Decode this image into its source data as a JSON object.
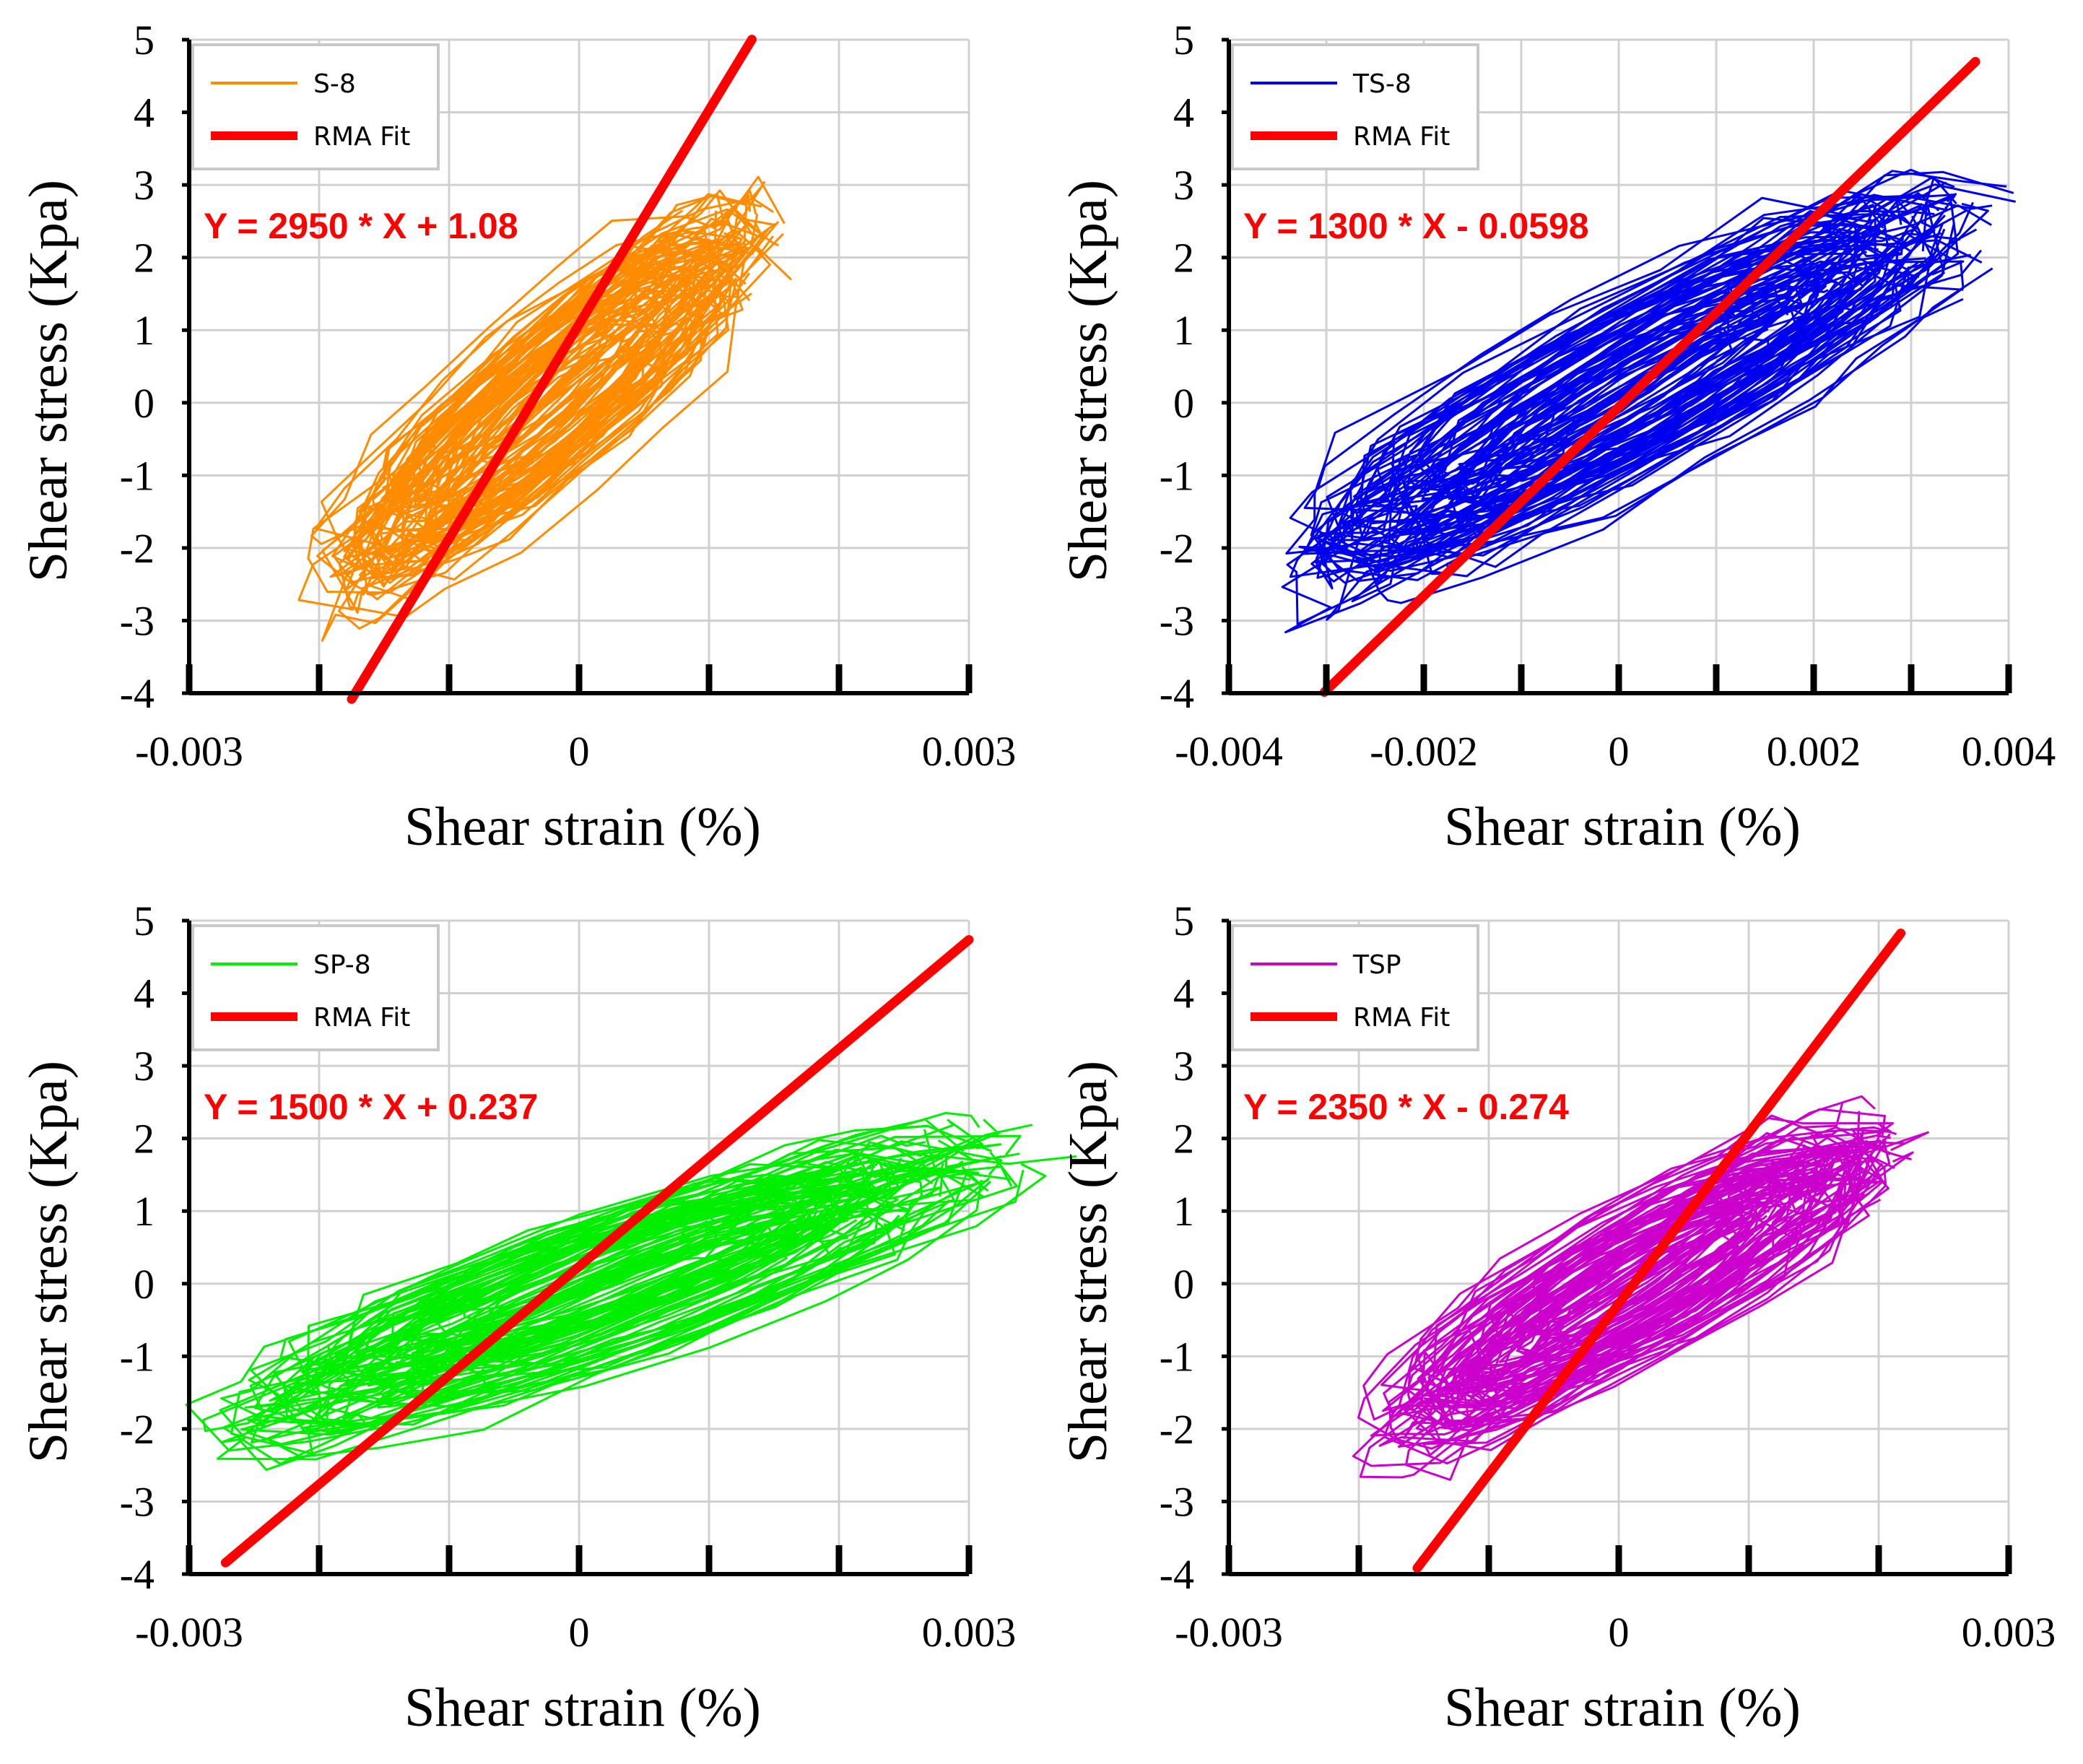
{
  "colors": {
    "fit": "#ff0000",
    "grid": "#d0d0d0",
    "axis": "#000000"
  },
  "chart_data": [
    {
      "type": "line",
      "series_name": "S-8",
      "color": "#ff8c00",
      "fit_label": "RMA Fit",
      "equation": "Y = 2950 * X + 1.08",
      "slope": 2950,
      "intercept": 1.08,
      "fit_x": [
        -0.00175,
        0.00133
      ],
      "xlabel": "Shear strain (%)",
      "ylabel": "Shear stress (Kpa)",
      "xlim": [
        -0.003,
        0.003
      ],
      "ylim": [
        -4,
        5
      ],
      "x_grid": [
        -0.003,
        -0.002,
        -0.001,
        0,
        0.001,
        0.002,
        0.003
      ],
      "x_tick_labels": [
        {
          "v": -0.003,
          "t": "-0.003"
        },
        {
          "v": 0,
          "t": "0"
        },
        {
          "v": 0.003,
          "t": "0.003"
        }
      ],
      "y_ticks": [
        -4,
        -3,
        -2,
        -1,
        0,
        1,
        2,
        3,
        4,
        5
      ],
      "loop_envelope": {
        "x": [
          -0.0019,
          0.0014
        ],
        "y": [
          -3.4,
          3.4
        ]
      },
      "legend": "top-left",
      "grid": true
    },
    {
      "type": "line",
      "series_name": "TS-8",
      "color": "#0000ee",
      "fit_label": "RMA Fit",
      "equation": "Y = 1300 * X - 0.0598",
      "slope": 1300,
      "intercept": -0.0598,
      "fit_x": [
        -0.00302,
        0.00366
      ],
      "xlabel": "Shear strain (%)",
      "ylabel": "Shear stress (Kpa)",
      "xlim": [
        -0.004,
        0.004
      ],
      "ylim": [
        -4,
        5
      ],
      "x_grid": [
        -0.004,
        -0.003,
        -0.002,
        -0.001,
        0,
        0.001,
        0.002,
        0.003,
        0.004
      ],
      "x_tick_labels": [
        {
          "v": -0.004,
          "t": "-0.004"
        },
        {
          "v": -0.002,
          "t": "-0.002"
        },
        {
          "v": 0,
          "t": "0"
        },
        {
          "v": 0.002,
          "t": "0.002"
        },
        {
          "v": 0.004,
          "t": "0.004"
        }
      ],
      "y_ticks": [
        -4,
        -3,
        -2,
        -1,
        0,
        1,
        2,
        3,
        4,
        5
      ],
      "loop_envelope": {
        "x": [
          -0.0032,
          0.0036
        ],
        "y": [
          -3.3,
          3.6
        ]
      },
      "legend": "top-left",
      "grid": true
    },
    {
      "type": "line",
      "series_name": "SP-8",
      "color": "#00ee00",
      "fit_label": "RMA Fit",
      "equation": "Y = 1500 * X + 0.237",
      "slope": 1500,
      "intercept": 0.237,
      "fit_x": [
        -0.00272,
        0.003
      ],
      "xlabel": "Shear strain (%)",
      "ylabel": "Shear stress (Kpa)",
      "xlim": [
        -0.003,
        0.003
      ],
      "ylim": [
        -4,
        5
      ],
      "x_grid": [
        -0.003,
        -0.002,
        -0.001,
        0,
        0.001,
        0.002,
        0.003
      ],
      "x_tick_labels": [
        {
          "v": -0.003,
          "t": "-0.003"
        },
        {
          "v": 0,
          "t": "0"
        },
        {
          "v": 0.003,
          "t": "0.003"
        }
      ],
      "y_ticks": [
        -4,
        -3,
        -2,
        -1,
        0,
        1,
        2,
        3,
        4,
        5
      ],
      "loop_envelope": {
        "x": [
          -0.0027,
          0.0032
        ],
        "y": [
          -2.7,
          2.7
        ]
      },
      "legend": "top-left",
      "grid": true
    },
    {
      "type": "line",
      "series_name": "TSP",
      "color": "#cc00cc",
      "fit_label": "RMA Fit",
      "equation": "Y = 2350 * X - 0.274",
      "slope": 2350,
      "intercept": -0.274,
      "fit_x": [
        -0.00155,
        0.00217
      ],
      "xlabel": "Shear strain (%)",
      "ylabel": "Shear stress (Kpa)",
      "xlim": [
        -0.003,
        0.003
      ],
      "ylim": [
        -4,
        5
      ],
      "x_grid": [
        -0.003,
        -0.002,
        -0.001,
        0,
        0.001,
        0.002,
        0.003
      ],
      "x_tick_labels": [
        {
          "v": -0.003,
          "t": "-0.003"
        },
        {
          "v": 0,
          "t": "0"
        },
        {
          "v": 0.003,
          "t": "0.003"
        }
      ],
      "y_ticks": [
        -4,
        -3,
        -2,
        -1,
        0,
        1,
        2,
        3,
        4,
        5
      ],
      "loop_envelope": {
        "x": [
          -0.0018,
          0.0021
        ],
        "y": [
          -2.8,
          2.9
        ]
      },
      "legend": "top-left",
      "grid": true
    }
  ]
}
